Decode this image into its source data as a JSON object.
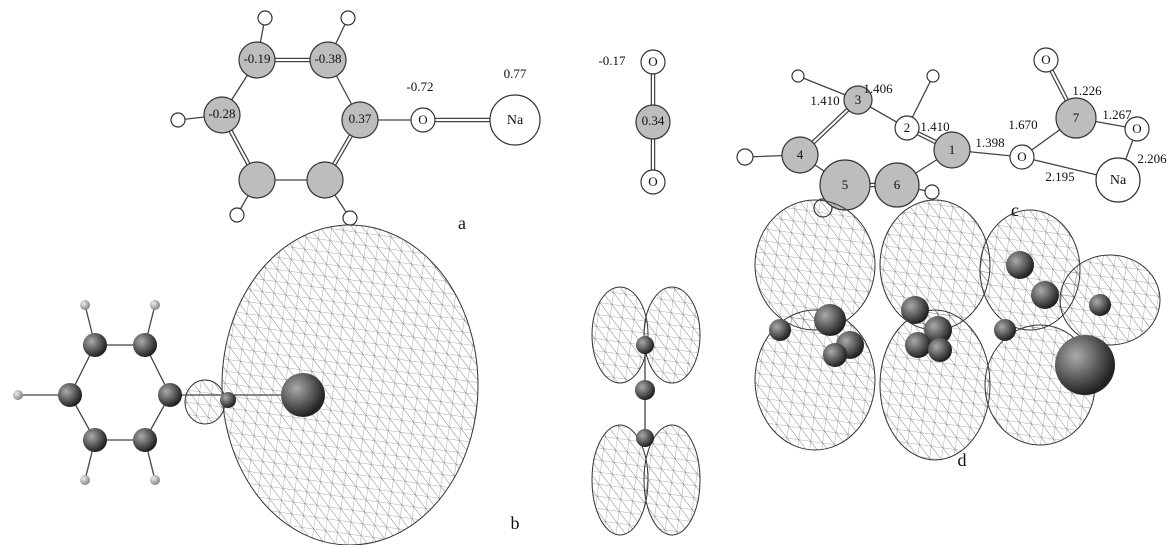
{
  "panels": {
    "a": {
      "label": "a",
      "charges": [
        "-0.19",
        "-0.38",
        "-0.28",
        "0.37",
        "-0.72",
        "0.77"
      ],
      "atoms": [
        "O",
        "Na"
      ]
    },
    "co2": {
      "charges": [
        "-0.17",
        "0.34"
      ],
      "atoms": [
        "O",
        "O"
      ]
    },
    "c": {
      "label": "c",
      "atom_numbers": [
        "1",
        "2",
        "3",
        "4",
        "5",
        "6",
        "7"
      ],
      "bond_lengths": [
        "1.410",
        "1.406",
        "1.410",
        "1.398",
        "1.670",
        "1.226",
        "1.267",
        "2.206",
        "2.195"
      ],
      "atoms": [
        "O",
        "O",
        "O",
        "Na"
      ]
    },
    "b": {
      "label": "b"
    },
    "d": {
      "label": "d"
    }
  }
}
